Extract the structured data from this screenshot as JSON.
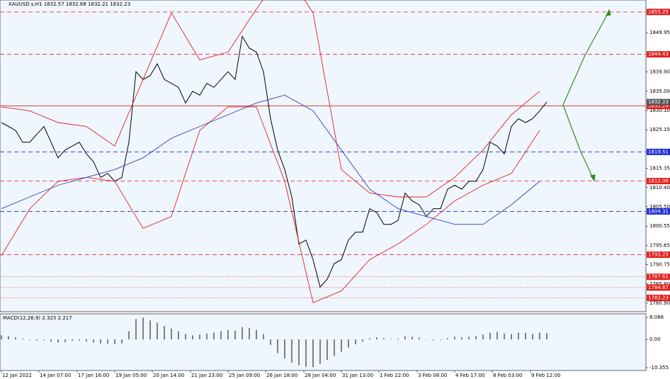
{
  "chart_data": [
    {
      "type": "line",
      "title": "XAUUSD.s,H1  1832.57 1832.68 1832.21 1832.23",
      "xlim": [
        0,
        91
      ],
      "ylim": [
        1778.7,
        1858.3
      ],
      "xticks": [
        {
          "value": 0,
          "label": "12 Jan 2022"
        },
        {
          "value": 5.3,
          "label": "14 Jan 07:00"
        },
        {
          "value": 10.7,
          "label": "17 Jan 16:00"
        },
        {
          "value": 16,
          "label": "19 Jan 05:00"
        },
        {
          "value": 21.3,
          "label": "20 Jan 14:00"
        },
        {
          "value": 26.7,
          "label": "21 Jan 23:00"
        },
        {
          "value": 32,
          "label": "25 Jan 09:00"
        },
        {
          "value": 37.3,
          "label": "26 Jan 18:00"
        },
        {
          "value": 42.7,
          "label": "28 Jan 04:00"
        },
        {
          "value": 48,
          "label": "31 Jan 13:00"
        },
        {
          "value": 53.3,
          "label": "1 Feb 22:00"
        },
        {
          "value": 58.7,
          "label": "3 Feb 08:00"
        },
        {
          "value": 64,
          "label": "4 Feb 17:00"
        },
        {
          "value": 69.3,
          "label": "8 Feb 03:00"
        },
        {
          "value": 74.7,
          "label": "9 Feb 12:00"
        }
      ],
      "yticks": [
        1849.95,
        {
          "value": 1839.9,
          "label": "1839.90"
        },
        {
          "value": 1835,
          "label": "1835.00"
        },
        {
          "value": 1830.1,
          "label": "1830.10"
        },
        1825.15,
        1815.35,
        {
          "value": 1810.4,
          "label": "1810.40"
        },
        {
          "value": 1805.5,
          "label": "1805.50"
        },
        1800.55,
        1795.65,
        1790.75,
        {
          "value": 1785.8,
          "label": "1785.80"
        },
        {
          "value": 1780.9,
          "label": "1780.90"
        }
      ],
      "levels": [
        {
          "value": 1855.25,
          "color": "#e02020",
          "style": "dashed"
        },
        {
          "value": 1844.43,
          "color": "#e02020",
          "style": "dashed"
        },
        {
          "value": 1831.24,
          "color": "#e02020",
          "style": "solid"
        },
        {
          "value": 1819.51,
          "color": "#2030d0",
          "style": "dashed"
        },
        {
          "value": 1812.06,
          "color": "#e02020",
          "style": "dashed"
        },
        {
          "value": 1804.31,
          "color": "#2030d0",
          "style": "dashed"
        },
        {
          "value": 1793.25,
          "color": "#e02020",
          "style": "dashed"
        },
        {
          "value": 1787.61,
          "color": "#e02020",
          "style": "dotted"
        },
        {
          "value": 1784.87,
          "color": "#e02020",
          "style": "dotted"
        },
        {
          "value": 1782.23,
          "color": "#e02020",
          "style": "dotted"
        }
      ],
      "current_price": {
        "value": 1832.23,
        "color": "#555555"
      },
      "series": [
        {
          "color": "#000000",
          "x": [
            0,
            1,
            2,
            3,
            4,
            5,
            6,
            7,
            8,
            9,
            10,
            11,
            12,
            13,
            14,
            15,
            16,
            17,
            18,
            19,
            20,
            21,
            22,
            23,
            24,
            25,
            26,
            27,
            28,
            29,
            30,
            31,
            32,
            33,
            34,
            35,
            36,
            37,
            38,
            39,
            40,
            41,
            42,
            43,
            44,
            45,
            46,
            47,
            48,
            49,
            50,
            51,
            52,
            53,
            54,
            55,
            56,
            57,
            58,
            59,
            60,
            61,
            62,
            63,
            64,
            65,
            66,
            67,
            68,
            69,
            70,
            71,
            72,
            73,
            74,
            75,
            76,
            77
          ],
          "values": [
            1827,
            1826,
            1825,
            1822,
            1822,
            1824,
            1826,
            1822,
            1818,
            1820,
            1821,
            1822,
            1819,
            1817,
            1813,
            1814,
            1812,
            1813,
            1822,
            1840,
            1838,
            1839,
            1842,
            1838,
            1837,
            1836,
            1832,
            1835,
            1834,
            1837,
            1836,
            1838,
            1840,
            1838,
            1849,
            1846,
            1845,
            1840,
            1828,
            1820,
            1815,
            1808,
            1796,
            1797,
            1792,
            1785,
            1787,
            1791,
            1792,
            1797,
            1799,
            1799,
            1805,
            1804,
            1801,
            1801,
            1802,
            1809,
            1807,
            1806,
            1803,
            1805,
            1805,
            1810,
            1811,
            1810,
            1812,
            1812,
            1815,
            1822,
            1821,
            1819,
            1826,
            1828,
            1827,
            1828,
            1830,
            1832.23
          ]
        },
        {
          "color": "#e02020",
          "x": [
            0,
            4,
            8,
            12,
            16,
            20,
            24,
            28,
            32,
            36,
            40,
            44,
            48,
            52,
            56,
            60,
            64,
            68,
            72,
            76
          ],
          "values": [
            1831,
            1830,
            1827,
            1826,
            1821,
            1838,
            1855,
            1843,
            1845,
            1856,
            1866,
            1855,
            1815,
            1809,
            1808,
            1808,
            1813,
            1820,
            1829,
            1835
          ]
        },
        {
          "color": "#e02020",
          "x": [
            0,
            4,
            8,
            12,
            16,
            20,
            24,
            28,
            32,
            36,
            40,
            44,
            48,
            52,
            56,
            60,
            64,
            68,
            72,
            76
          ],
          "values": [
            1793,
            1805,
            1812,
            1813,
            1812,
            1800,
            1803,
            1825,
            1831,
            1831,
            1812,
            1781,
            1784,
            1792,
            1796,
            1801,
            1807,
            1811,
            1814,
            1825
          ]
        },
        {
          "color": "#3040c0",
          "x": [
            0,
            4,
            8,
            12,
            16,
            20,
            24,
            28,
            32,
            36,
            40,
            44,
            48,
            52,
            56,
            60,
            64,
            68,
            72,
            76
          ],
          "values": [
            1805,
            1808,
            1811,
            1813,
            1815,
            1818,
            1823,
            1826,
            1829,
            1832,
            1834,
            1830,
            1820,
            1810,
            1805,
            1803,
            1801,
            1801,
            1806,
            1812
          ]
        }
      ]
    },
    {
      "type": "bar",
      "title": "MACD(12,26,9) 2.325 2.217",
      "xlim": [
        0,
        91
      ],
      "ylim": [
        -11.4,
        9.4
      ],
      "yticks": [
        8.086,
        {
          "value": 0,
          "label": "0.00"
        },
        -10.355
      ],
      "color": "#808080",
      "x": [
        0,
        1,
        2,
        3,
        4,
        5,
        6,
        7,
        8,
        9,
        10,
        11,
        12,
        13,
        14,
        15,
        16,
        17,
        18,
        19,
        20,
        21,
        22,
        23,
        24,
        25,
        26,
        27,
        28,
        29,
        30,
        31,
        32,
        33,
        34,
        35,
        36,
        37,
        38,
        39,
        40,
        41,
        42,
        43,
        44,
        45,
        46,
        47,
        48,
        49,
        50,
        51,
        52,
        53,
        54,
        55,
        56,
        57,
        58,
        59,
        60,
        61,
        62,
        63,
        64,
        65,
        66,
        67,
        68,
        69,
        70,
        71,
        72,
        73,
        74,
        75,
        76,
        77
      ],
      "values": [
        1.5,
        1.2,
        0.8,
        0.3,
        -0.2,
        -0.5,
        -0.3,
        -0.8,
        -1.2,
        -1.0,
        -0.6,
        -0.4,
        -0.8,
        -1.2,
        -1.5,
        -1.6,
        -1.8,
        -1.5,
        3.0,
        7.5,
        8.0,
        7.0,
        6.2,
        5.0,
        4.0,
        3.0,
        2.0,
        1.5,
        1.8,
        2.2,
        2.5,
        3.0,
        3.5,
        3.2,
        4.5,
        4.2,
        3.5,
        2.0,
        -2.0,
        -5.0,
        -7.0,
        -8.5,
        -9.5,
        -10.0,
        -10.2,
        -9.0,
        -7.5,
        -6.0,
        -4.5,
        -3.0,
        -1.8,
        -0.8,
        0.5,
        0.8,
        0.5,
        0.2,
        0.3,
        1.2,
        1.0,
        0.6,
        0.0,
        -0.3,
        -0.2,
        0.5,
        1.0,
        0.8,
        1.0,
        1.2,
        1.8,
        2.5,
        2.8,
        2.2,
        2.0,
        2.5,
        2.4,
        2.0,
        2.5,
        2.3
      ]
    }
  ]
}
